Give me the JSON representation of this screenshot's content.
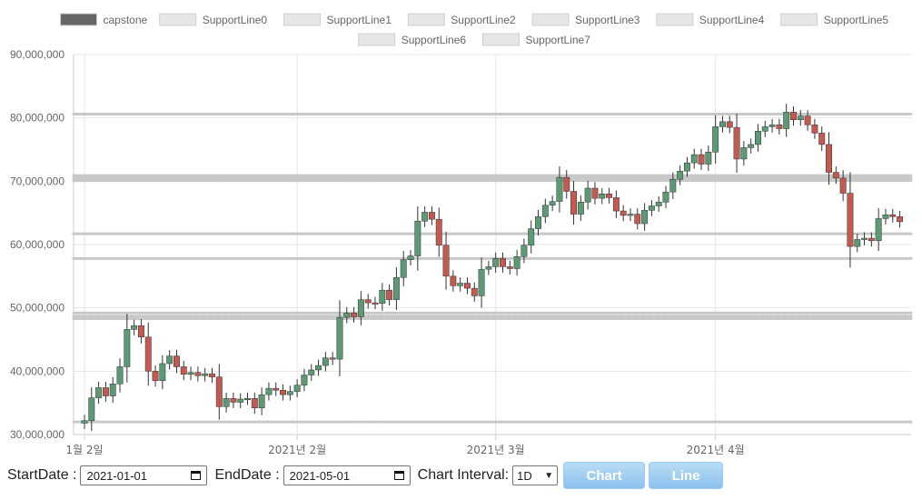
{
  "chart_data": {
    "type": "candlestick",
    "legend": {
      "position": "top",
      "entries": [
        {
          "label": "capstone",
          "color": "#666666"
        },
        {
          "label": "SupportLine0",
          "color": "#e6e6e6"
        },
        {
          "label": "SupportLine1",
          "color": "#e6e6e6"
        },
        {
          "label": "SupportLine2",
          "color": "#e6e6e6"
        },
        {
          "label": "SupportLine3",
          "color": "#e6e6e6"
        },
        {
          "label": "SupportLine4",
          "color": "#e6e6e6"
        },
        {
          "label": "SupportLine5",
          "color": "#e6e6e6"
        },
        {
          "label": "SupportLine6",
          "color": "#e6e6e6"
        },
        {
          "label": "SupportLine7",
          "color": "#e6e6e6"
        }
      ]
    },
    "y_axis": {
      "min": 30000000,
      "max": 90000000,
      "ticks": [
        {
          "value": 30000000,
          "label": "30,000,000"
        },
        {
          "value": 40000000,
          "label": "40,000,000"
        },
        {
          "value": 50000000,
          "label": "50,000,000"
        },
        {
          "value": 60000000,
          "label": "60,000,000"
        },
        {
          "value": 70000000,
          "label": "70,000,000"
        },
        {
          "value": 80000000,
          "label": "80,000,000"
        },
        {
          "value": 90000000,
          "label": "90,000,000"
        }
      ]
    },
    "x_axis": {
      "start": "2021-01-02",
      "end": "2021-05-01",
      "ticks": [
        {
          "date": "2021-01-02",
          "label": "1월 2일"
        },
        {
          "date": "2021-02-01",
          "label": "2021년 2월"
        },
        {
          "date": "2021-03-01",
          "label": "2021년 3월"
        },
        {
          "date": "2021-04-01",
          "label": "2021년 4월"
        }
      ]
    },
    "grid": true,
    "colors": {
      "up": "#5d9974",
      "down": "#c25a52",
      "wick": "#333333",
      "support": "#cccccc",
      "grid": "#e6e6e6"
    },
    "support_lines": [
      {
        "name": "SupportLine0",
        "values": [
          80600000
        ]
      },
      {
        "name": "SupportLine1",
        "values": [
          70900000,
          70500000,
          70100000
        ]
      },
      {
        "name": "SupportLine2",
        "values": [
          61700000
        ]
      },
      {
        "name": "SupportLine3",
        "values": [
          57800000
        ]
      },
      {
        "name": "SupportLine4",
        "values": [
          49200000,
          48700000,
          48300000
        ]
      },
      {
        "name": "SupportLine5",
        "values": [
          32000000
        ]
      }
    ],
    "closes": [
      32200000,
      35800000,
      37400000,
      36100000,
      38000000,
      40700000,
      46600000,
      47200000,
      45400000,
      40000000,
      38500000,
      41200000,
      42400000,
      40700000,
      39500000,
      39800000,
      39300000,
      39600000,
      39100000,
      34400000,
      35700000,
      35100000,
      35600000,
      35700000,
      34200000,
      36300000,
      37300000,
      37000000,
      36300000,
      36800000,
      37800000,
      39400000,
      40200000,
      40900000,
      42100000,
      41900000,
      48500000,
      49200000,
      48600000,
      51300000,
      50800000,
      50700000,
      52800000,
      51300000,
      54800000,
      57600000,
      58200000,
      63700000,
      65100000,
      64000000,
      59900000,
      55000000,
      53500000,
      53900000,
      53100000,
      51900000,
      56100000,
      56500000,
      57800000,
      56500000,
      56200000,
      58100000,
      59900000,
      62500000,
      64400000,
      66200000,
      66800000,
      70600000,
      68400000,
      64800000,
      66700000,
      68900000,
      67300000,
      68000000,
      67400000,
      65300000,
      64600000,
      64800000,
      63300000,
      65400000,
      66100000,
      66700000,
      68300000,
      70300000,
      71600000,
      72900000,
      74200000,
      72700000,
      74600000,
      78600000,
      79400000,
      78500000,
      73500000,
      75300000,
      75800000,
      77900000,
      78600000,
      78900000,
      78300000,
      80900000,
      79700000,
      80300000,
      78900000,
      77600000,
      75800000,
      71400000,
      70500000,
      68100000,
      59700000,
      60800000,
      61000000,
      60600000,
      64100000,
      64700000,
      64400000,
      63600000
    ]
  },
  "form": {
    "start_label": "StartDate :",
    "start_value": "2021-01-01",
    "end_label": "EndDate :",
    "end_value": "2021-05-01",
    "interval_label": "Chart Interval:",
    "interval_value": "1D",
    "chart_button": "Chart",
    "line_button": "Line"
  }
}
